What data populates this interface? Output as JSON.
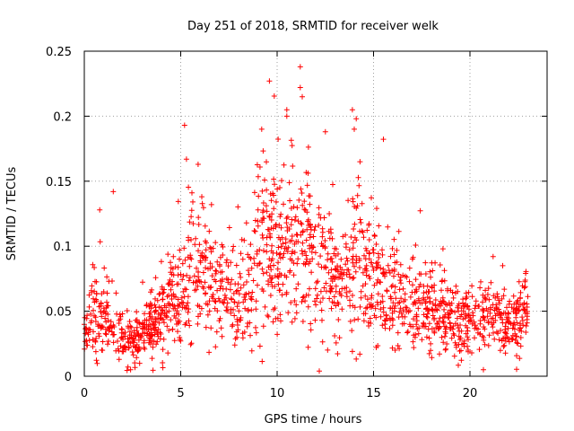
{
  "chart_data": {
    "type": "scatter",
    "title": "Day 251 of 2018, SRMTID for receiver welk",
    "xlabel": "GPS time / hours",
    "ylabel": "SRMTID / TECUs",
    "xlim": [
      0,
      24
    ],
    "ylim": [
      0,
      0.25
    ],
    "x_ticks": [
      0,
      5,
      10,
      15,
      20
    ],
    "x_tick_labels": [
      "0",
      "5",
      "10",
      "15",
      "20"
    ],
    "y_ticks": [
      0,
      0.05,
      0.1,
      0.15,
      0.2,
      0.25
    ],
    "y_tick_labels": [
      "0",
      "0.05",
      "0.1",
      "0.15",
      "0.2",
      "0.25"
    ],
    "grid": true,
    "marker": "+",
    "point_color": "#ff0000",
    "time_start_hours": 0,
    "time_end_hours": 23,
    "trend": [
      {
        "x": 0,
        "y": 0.035
      },
      {
        "x": 0.5,
        "y": 0.05
      },
      {
        "x": 1,
        "y": 0.045
      },
      {
        "x": 1.5,
        "y": 0.04
      },
      {
        "x": 2,
        "y": 0.03
      },
      {
        "x": 2.5,
        "y": 0.028
      },
      {
        "x": 3,
        "y": 0.032
      },
      {
        "x": 3.5,
        "y": 0.04
      },
      {
        "x": 4,
        "y": 0.045
      },
      {
        "x": 4.5,
        "y": 0.055
      },
      {
        "x": 5,
        "y": 0.06
      },
      {
        "x": 5.5,
        "y": 0.085
      },
      {
        "x": 6,
        "y": 0.08
      },
      {
        "x": 6.5,
        "y": 0.07
      },
      {
        "x": 7,
        "y": 0.065
      },
      {
        "x": 7.5,
        "y": 0.07
      },
      {
        "x": 8,
        "y": 0.06
      },
      {
        "x": 8.5,
        "y": 0.065
      },
      {
        "x": 9,
        "y": 0.09
      },
      {
        "x": 9.5,
        "y": 0.11
      },
      {
        "x": 10,
        "y": 0.1
      },
      {
        "x": 10.5,
        "y": 0.1
      },
      {
        "x": 11,
        "y": 0.09
      },
      {
        "x": 11.5,
        "y": 0.1
      },
      {
        "x": 12,
        "y": 0.085
      },
      {
        "x": 12.5,
        "y": 0.09
      },
      {
        "x": 13,
        "y": 0.075
      },
      {
        "x": 13.5,
        "y": 0.07
      },
      {
        "x": 14,
        "y": 0.085
      },
      {
        "x": 14.5,
        "y": 0.08
      },
      {
        "x": 15,
        "y": 0.075
      },
      {
        "x": 15.5,
        "y": 0.07
      },
      {
        "x": 16,
        "y": 0.06
      },
      {
        "x": 16.5,
        "y": 0.06
      },
      {
        "x": 17,
        "y": 0.055
      },
      {
        "x": 17.5,
        "y": 0.05
      },
      {
        "x": 18,
        "y": 0.05
      },
      {
        "x": 18.5,
        "y": 0.05
      },
      {
        "x": 19,
        "y": 0.042
      },
      {
        "x": 19.5,
        "y": 0.04
      },
      {
        "x": 20,
        "y": 0.04
      },
      {
        "x": 20.5,
        "y": 0.045
      },
      {
        "x": 21,
        "y": 0.05
      },
      {
        "x": 21.5,
        "y": 0.045
      },
      {
        "x": 22,
        "y": 0.04
      },
      {
        "x": 22.5,
        "y": 0.042
      },
      {
        "x": 23,
        "y": 0.045
      }
    ],
    "notable_points": [
      {
        "x": 5.2,
        "y": 0.193
      },
      {
        "x": 5.3,
        "y": 0.167
      },
      {
        "x": 5.9,
        "y": 0.163
      },
      {
        "x": 1.5,
        "y": 0.142
      },
      {
        "x": 0.8,
        "y": 0.128
      },
      {
        "x": 9.2,
        "y": 0.19
      },
      {
        "x": 9.6,
        "y": 0.227
      },
      {
        "x": 10.5,
        "y": 0.205
      },
      {
        "x": 10.5,
        "y": 0.2
      },
      {
        "x": 11.2,
        "y": 0.238
      },
      {
        "x": 11.2,
        "y": 0.222
      },
      {
        "x": 11.3,
        "y": 0.215
      },
      {
        "x": 12.5,
        "y": 0.188
      },
      {
        "x": 13.9,
        "y": 0.205
      },
      {
        "x": 14.1,
        "y": 0.198
      },
      {
        "x": 14.0,
        "y": 0.19
      },
      {
        "x": 14.3,
        "y": 0.165
      },
      {
        "x": 2.4,
        "y": 0.005
      },
      {
        "x": 20.7,
        "y": 0.005
      },
      {
        "x": 18.6,
        "y": 0.098
      },
      {
        "x": 21.2,
        "y": 0.092
      },
      {
        "x": 21.7,
        "y": 0.085
      }
    ]
  }
}
